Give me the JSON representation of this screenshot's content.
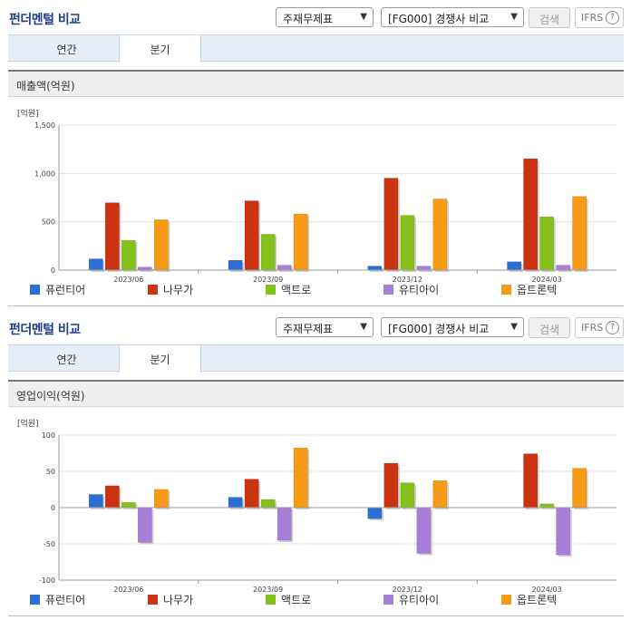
{
  "panels": [
    {
      "header": {
        "title": "펀더멘털 비교",
        "select1": "주재무제표",
        "select2": "[FG000] 경쟁사 비교",
        "search_label": "검색",
        "ifrs_label": "IFRS",
        "help": "?"
      },
      "tabs": [
        {
          "label": "연간"
        },
        {
          "label": "분기"
        }
      ],
      "active_tab": 1,
      "section_title": "매출액(억원)"
    },
    {
      "header": {
        "title": "펀더멘털 비교",
        "select1": "주재무제표",
        "select2": "[FG000] 경쟁사 비교",
        "search_label": "검색",
        "ifrs_label": "IFRS",
        "help": "?"
      },
      "tabs": [
        {
          "label": "연간"
        },
        {
          "label": "분기"
        }
      ],
      "active_tab": 1,
      "section_title": "영업이익(억원)"
    }
  ],
  "chart_data": [
    {
      "type": "bar",
      "unit_label": "[억원]",
      "categories": [
        "2023/06",
        "2023/09",
        "2023/12",
        "2024/03"
      ],
      "ylim": [
        0,
        1500
      ],
      "yticks": [
        0,
        500,
        1000,
        1500
      ],
      "ytick_labels": [
        "0",
        "500",
        "1,000",
        "1,500"
      ],
      "grid": true,
      "legend_position": "bottom",
      "series": [
        {
          "name": "퓨런티어",
          "color": "#2b6fd6",
          "values": [
            115,
            100,
            40,
            85
          ]
        },
        {
          "name": "나무가",
          "color": "#cc3311",
          "values": [
            695,
            715,
            950,
            1150
          ]
        },
        {
          "name": "액트로",
          "color": "#86c11b",
          "values": [
            305,
            370,
            565,
            550
          ]
        },
        {
          "name": "유티아이",
          "color": "#a77fd8",
          "values": [
            30,
            50,
            40,
            50
          ]
        },
        {
          "name": "옵트론텍",
          "color": "#f79a16",
          "values": [
            520,
            580,
            735,
            760
          ]
        }
      ]
    },
    {
      "type": "bar",
      "unit_label": "[억원]",
      "categories": [
        "2023/06",
        "2023/09",
        "2023/12",
        "2024/03"
      ],
      "ylim": [
        -100,
        100
      ],
      "yticks": [
        -100,
        -50,
        0,
        50,
        100
      ],
      "ytick_labels": [
        "-100",
        "-50",
        "0",
        "50",
        "100"
      ],
      "grid": true,
      "legend_position": "bottom",
      "series": [
        {
          "name": "퓨런티어",
          "color": "#2b6fd6",
          "values": [
            18,
            14,
            -15,
            0
          ]
        },
        {
          "name": "나무가",
          "color": "#cc3311",
          "values": [
            30,
            39,
            61,
            74
          ]
        },
        {
          "name": "액트로",
          "color": "#86c11b",
          "values": [
            7,
            11,
            34,
            5
          ]
        },
        {
          "name": "유티아이",
          "color": "#a77fd8",
          "values": [
            -48,
            -45,
            -63,
            -65
          ]
        },
        {
          "name": "옵트론텍",
          "color": "#f79a16",
          "values": [
            25,
            82,
            37,
            54
          ]
        }
      ]
    }
  ]
}
